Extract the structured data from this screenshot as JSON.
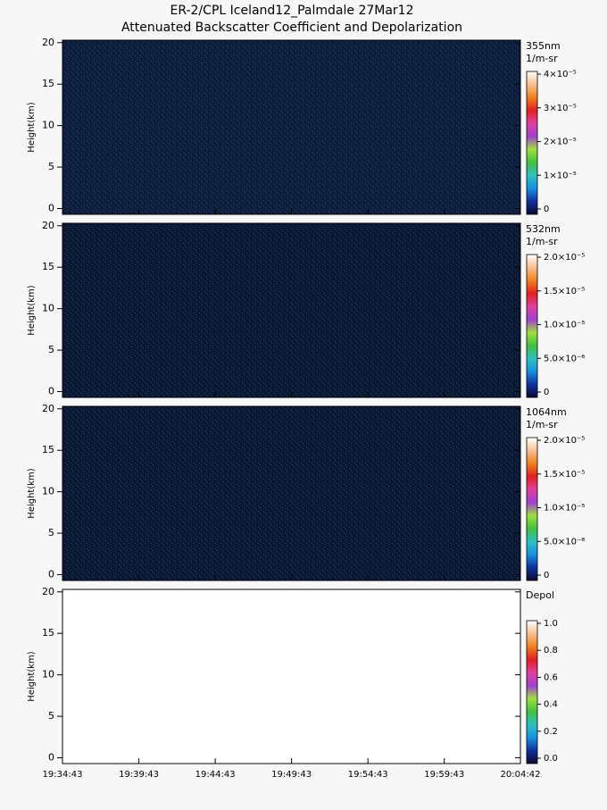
{
  "chart_data": [
    {
      "type": "heatmap",
      "title": "ER-2/CPL Iceland12_Palmdale 27Mar12",
      "subtitle": "Attenuated Backscatter Coefficient and Depolarization",
      "label": "355nm",
      "units": "1/m-sr",
      "ylabel": "Height(km)",
      "ylim": [
        -0.7,
        20.3
      ],
      "yticks": [
        0,
        5,
        10,
        15,
        20
      ],
      "background": "#0d1d3c",
      "clim": [
        0,
        4e-05
      ],
      "cticks": [
        0,
        {
          "value": 1e-05,
          "label": "1×10⁻⁵"
        },
        {
          "value": 2e-05,
          "label": "2×10⁻⁵"
        },
        {
          "value": 3e-05,
          "label": "3×10⁻⁵"
        },
        {
          "value": 4e-05,
          "label": "4×10⁻⁵"
        }
      ],
      "colormap": [
        "#0a0a30",
        "#1030a0",
        "#1890e0",
        "#30c0c0",
        "#40c040",
        "#a0e040",
        "#a040d0",
        "#e040a0",
        "#e02020",
        "#f08020",
        "#f8c090",
        "#ffffff"
      ]
    },
    {
      "type": "heatmap",
      "label": "532nm",
      "units": "1/m-sr",
      "ylabel": "Height(km)",
      "ylim": [
        -0.7,
        20.3
      ],
      "yticks": [
        0,
        5,
        10,
        15,
        20
      ],
      "background": "#0a1834",
      "clim": [
        0,
        2e-05
      ],
      "cticks": [
        0,
        {
          "value": 5e-06,
          "label": "5.0×10⁻⁶"
        },
        {
          "value": 1e-05,
          "label": "1.0×10⁻⁵"
        },
        {
          "value": 1.5e-05,
          "label": "1.5×10⁻⁵"
        },
        {
          "value": 2e-05,
          "label": "2.0×10⁻⁵"
        }
      ],
      "colormap": [
        "#0a0a30",
        "#1030a0",
        "#1890e0",
        "#30c0c0",
        "#40c040",
        "#a0e040",
        "#a040d0",
        "#e040a0",
        "#e02020",
        "#f08020",
        "#f8c090",
        "#ffffff"
      ]
    },
    {
      "type": "heatmap",
      "label": "1064nm",
      "units": "1/m-sr",
      "ylabel": "Height(km)",
      "ylim": [
        -0.7,
        20.3
      ],
      "yticks": [
        0,
        5,
        10,
        15,
        20
      ],
      "background": "#0a1834",
      "clim": [
        0,
        2e-05
      ],
      "cticks": [
        0,
        {
          "value": 5e-06,
          "label": "5.0×10⁻⁶"
        },
        {
          "value": 1e-05,
          "label": "1.0×10⁻⁵"
        },
        {
          "value": 1.5e-05,
          "label": "1.5×10⁻⁵"
        },
        {
          "value": 2e-05,
          "label": "2.0×10⁻⁵"
        }
      ],
      "colormap": [
        "#0a0a30",
        "#1030a0",
        "#1890e0",
        "#30c0c0",
        "#40c040",
        "#a0e040",
        "#a040d0",
        "#e040a0",
        "#e02020",
        "#f08020",
        "#f8c090",
        "#ffffff"
      ]
    },
    {
      "type": "heatmap",
      "label": "Depol",
      "ylabel": "Height(km)",
      "ylim": [
        -0.7,
        20.3
      ],
      "yticks": [
        0,
        5,
        10,
        15,
        20
      ],
      "background": "#ffffff",
      "clim": [
        0,
        1
      ],
      "cticks": [
        {
          "value": 0,
          "label": "0.0"
        },
        0.2,
        0.4,
        0.6,
        0.8,
        {
          "value": 1,
          "label": "1.0"
        }
      ],
      "colormap": [
        "#0a0a30",
        "#1030a0",
        "#1890e0",
        "#30c0c0",
        "#40c040",
        "#a0e040",
        "#a040d0",
        "#e040a0",
        "#e02020",
        "#f08020",
        "#f8c090",
        "#ffffff"
      ],
      "xlim": [
        70483,
        72282
      ],
      "xticks": [
        {
          "value": 70483,
          "label": "19:34:43"
        },
        {
          "value": 70783,
          "label": "19:39:43"
        },
        {
          "value": 71083,
          "label": "19:44:43"
        },
        {
          "value": 71383,
          "label": "19:49:43"
        },
        {
          "value": 71683,
          "label": "19:54:43"
        },
        {
          "value": 71983,
          "label": "19:59:43"
        },
        {
          "value": 72282,
          "label": "20:04:42"
        }
      ]
    }
  ]
}
